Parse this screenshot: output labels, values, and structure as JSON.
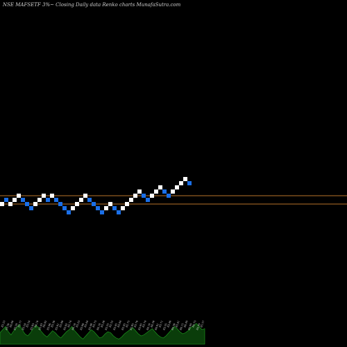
{
  "chart_data": {
    "type": "renko",
    "title": "NSE MAFSETF 3%~  Closing Daily data  Renko  charts MunafaSutra.com",
    "colors": {
      "background": "#000000",
      "up_brick": "#ffffff",
      "down_brick": "#1a6fe8",
      "reference_line": "#b8742a",
      "volume_fill": "#0a3d0a",
      "volume_outline": "#1fa31f"
    },
    "price_range": [
      0,
      100
    ],
    "reference_lines": [
      41.2,
      43.6
    ],
    "bricks": [
      {
        "dir": "up",
        "level": 41.2
      },
      {
        "dir": "down",
        "level": 42.4
      },
      {
        "dir": "up",
        "level": 41.2
      },
      {
        "dir": "up",
        "level": 42.4
      },
      {
        "dir": "up",
        "level": 43.6
      },
      {
        "dir": "down",
        "level": 42.4
      },
      {
        "dir": "down",
        "level": 41.2
      },
      {
        "dir": "down",
        "level": 40.0
      },
      {
        "dir": "up",
        "level": 41.2
      },
      {
        "dir": "up",
        "level": 42.4
      },
      {
        "dir": "up",
        "level": 43.6
      },
      {
        "dir": "down",
        "level": 42.4
      },
      {
        "dir": "up",
        "level": 43.6
      },
      {
        "dir": "down",
        "level": 42.4
      },
      {
        "dir": "down",
        "level": 41.2
      },
      {
        "dir": "down",
        "level": 40.0
      },
      {
        "dir": "down",
        "level": 38.8
      },
      {
        "dir": "up",
        "level": 40.0
      },
      {
        "dir": "up",
        "level": 41.2
      },
      {
        "dir": "up",
        "level": 42.4
      },
      {
        "dir": "up",
        "level": 43.6
      },
      {
        "dir": "down",
        "level": 42.4
      },
      {
        "dir": "down",
        "level": 41.2
      },
      {
        "dir": "down",
        "level": 40.0
      },
      {
        "dir": "down",
        "level": 38.8
      },
      {
        "dir": "up",
        "level": 40.0
      },
      {
        "dir": "up",
        "level": 41.2
      },
      {
        "dir": "down",
        "level": 40.0
      },
      {
        "dir": "down",
        "level": 38.8
      },
      {
        "dir": "up",
        "level": 40.0
      },
      {
        "dir": "up",
        "level": 41.2
      },
      {
        "dir": "up",
        "level": 42.4
      },
      {
        "dir": "up",
        "level": 43.6
      },
      {
        "dir": "up",
        "level": 44.8
      },
      {
        "dir": "down",
        "level": 43.6
      },
      {
        "dir": "down",
        "level": 42.4
      },
      {
        "dir": "up",
        "level": 43.6
      },
      {
        "dir": "up",
        "level": 44.8
      },
      {
        "dir": "up",
        "level": 46.0
      },
      {
        "dir": "down",
        "level": 44.8
      },
      {
        "dir": "down",
        "level": 43.6
      },
      {
        "dir": "up",
        "level": 44.8
      },
      {
        "dir": "up",
        "level": 46.0
      },
      {
        "dir": "up",
        "level": 47.2
      },
      {
        "dir": "up",
        "level": 48.4
      },
      {
        "dir": "down",
        "level": 47.2
      }
    ],
    "volume_labels": [
      "83.23",
      "83.30",
      "84.60",
      "83.29",
      "82.77",
      "83.24",
      "83.54",
      "83.83",
      "84.10",
      "83.43",
      "84.02",
      "83.06",
      "83.30",
      "83.61",
      "83.08",
      "83.02",
      "82.74",
      "84.18",
      "83.23",
      "83.68",
      "83.44",
      "83.48",
      "83.73",
      "84.10",
      "83.28",
      "83.25",
      "82.52",
      "83.45",
      "83.04",
      "83.45",
      "82.75",
      "82.85",
      "83.70",
      "83.65",
      "83.74",
      "84.10",
      "84.50",
      "84.61",
      "83.71",
      "83.35",
      "83.46",
      "84.30",
      "83.41",
      "84.15",
      "84.49",
      "84.69",
      "84.73",
      "84.99",
      "85.57"
    ],
    "volume_profile": [
      0.55,
      0.7,
      0.85,
      0.6,
      0.45,
      0.65,
      0.8,
      0.95,
      0.7,
      0.5,
      0.4,
      0.55,
      0.75,
      0.9,
      0.8,
      0.6,
      0.45,
      0.35,
      0.5,
      0.65,
      0.55,
      0.4,
      0.3,
      0.45,
      0.6,
      0.7,
      0.85,
      0.65,
      0.5,
      0.35,
      0.25,
      0.4,
      0.55,
      0.7,
      0.6,
      0.45,
      0.3,
      0.35,
      0.5,
      0.6,
      0.55,
      0.4,
      0.3,
      0.25,
      0.35,
      0.5,
      0.6,
      0.7,
      0.8,
      0.65,
      0.5,
      0.4,
      0.45,
      0.55,
      0.65,
      0.75,
      0.6,
      0.45,
      0.35,
      0.3,
      0.4,
      0.55,
      0.7,
      0.85,
      0.75,
      0.6,
      0.5,
      0.55,
      0.65,
      0.8,
      0.9,
      1.0,
      0.85,
      0.7,
      0.75
    ]
  }
}
